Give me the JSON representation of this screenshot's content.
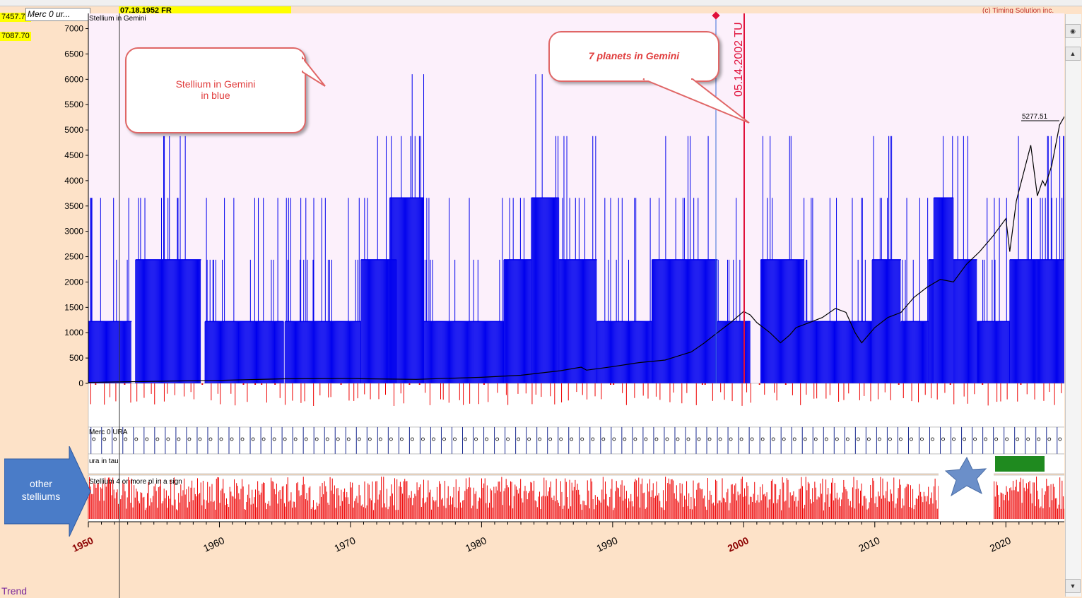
{
  "header": {
    "value_tag_top": "7457.74",
    "value_tag_low": "7087.70",
    "merc_tag": "Merc 0 ur...",
    "date_label": "07.18.1952 FR",
    "copyright": "(c) Timing Solution inc."
  },
  "panels": {
    "main_title": "Stellium in Gemini",
    "middle_label": "Merc 0 URA",
    "ura_label": "ura in tau",
    "stellium_label": "Stellium 4 or more pl in a sign"
  },
  "annotations": {
    "callout_left_line1": "Stellium in Gemini",
    "callout_left_line2": "in blue",
    "callout_right": "7 planets in Gemini",
    "vertical_marker": "05.14.2002 TU",
    "last_price": "5277.51",
    "left_arrow_line1": "other",
    "left_arrow_line2": "stelliums"
  },
  "footer": {
    "trend_label": "Trend"
  },
  "colors": {
    "background": "#fde2c8",
    "plot_background": "#fcf0fb",
    "stellium_bars": "#0000ee",
    "price_line": "#000000",
    "marker": "#e0103a",
    "other_stellium_bars": "#ee0000",
    "highlight_year": "#8b0000"
  },
  "chart_data": {
    "type": "bar",
    "title": "Stellium in Gemini",
    "xlim": [
      1950,
      2025
    ],
    "ylim": [
      0,
      7300
    ],
    "y_ticks": [
      0,
      500,
      1000,
      1500,
      2000,
      2500,
      3000,
      3500,
      4000,
      4500,
      5000,
      5500,
      6000,
      6500,
      7000
    ],
    "x_ticks": [
      1950,
      1960,
      1970,
      1980,
      1990,
      2000,
      2010,
      2020
    ],
    "highlighted_x_ticks": [
      1950,
      2000
    ],
    "stellium_levels": [
      1220,
      2440,
      3660,
      4880,
      6100
    ],
    "stellium_blocks": [
      {
        "from": 1950.0,
        "to": 1953.3,
        "level": 1220
      },
      {
        "from": 1953.6,
        "to": 1958.6,
        "level": 2440
      },
      {
        "from": 1958.9,
        "to": 1964.9,
        "level": 1220
      },
      {
        "from": 1965.0,
        "to": 1970.8,
        "level": 1220
      },
      {
        "from": 1970.8,
        "to": 1973.5,
        "level": 2440
      },
      {
        "from": 1973.0,
        "to": 1975.6,
        "level": 3660
      },
      {
        "from": 1975.6,
        "to": 1981.7,
        "level": 1220
      },
      {
        "from": 1981.7,
        "to": 1983.8,
        "level": 2440
      },
      {
        "from": 1983.8,
        "to": 1985.9,
        "level": 3660
      },
      {
        "from": 1985.9,
        "to": 1988.8,
        "level": 2440
      },
      {
        "from": 1988.8,
        "to": 1993.0,
        "level": 1220
      },
      {
        "from": 1993.0,
        "to": 1998.0,
        "level": 2440
      },
      {
        "from": 1998.0,
        "to": 2000.5,
        "level": 1220
      },
      {
        "from": 2001.3,
        "to": 2004.6,
        "level": 2440
      },
      {
        "from": 2004.6,
        "to": 2009.8,
        "level": 1220
      },
      {
        "from": 2009.8,
        "to": 2012.0,
        "level": 2440
      },
      {
        "from": 2012.0,
        "to": 2014.1,
        "level": 1220
      },
      {
        "from": 2014.1,
        "to": 2014.5,
        "level": 2440
      },
      {
        "from": 2014.5,
        "to": 2016.0,
        "level": 3660
      },
      {
        "from": 2016.0,
        "to": 2017.8,
        "level": 2440
      },
      {
        "from": 2017.8,
        "to": 2020.3,
        "level": 1220
      },
      {
        "from": 2020.3,
        "to": 2022.3,
        "level": 2440
      },
      {
        "from": 2022.3,
        "to": 2025.0,
        "level": 2440
      }
    ],
    "price_series": {
      "name": "Trend",
      "x": [
        1950,
        1955,
        1960,
        1965,
        1970,
        1975,
        1980,
        1983,
        1986,
        1987.6,
        1988,
        1990,
        1992,
        1994,
        1996,
        1997,
        1998,
        1999,
        2000,
        2000.5,
        2001,
        2002,
        2002.8,
        2003.5,
        2004,
        2005,
        2006,
        2007,
        2007.8,
        2008.5,
        2009,
        2010,
        2011,
        2012,
        2013,
        2014,
        2015,
        2016,
        2017,
        2018,
        2019,
        2020,
        2020.3,
        2020.8,
        2021,
        2021.9,
        2022.4,
        2022.8,
        2023,
        2023.5,
        2024.1,
        2024.5
      ],
      "y": [
        20,
        40,
        60,
        90,
        95,
        80,
        120,
        160,
        250,
        320,
        260,
        330,
        410,
        460,
        620,
        800,
        1000,
        1200,
        1420,
        1350,
        1200,
        1000,
        800,
        950,
        1100,
        1200,
        1300,
        1480,
        1400,
        1000,
        800,
        1100,
        1300,
        1400,
        1700,
        1900,
        2050,
        2000,
        2350,
        2600,
        2900,
        3250,
        2600,
        3600,
        3800,
        4700,
        3700,
        4000,
        3900,
        4300,
        5100,
        5278
      ]
    }
  }
}
